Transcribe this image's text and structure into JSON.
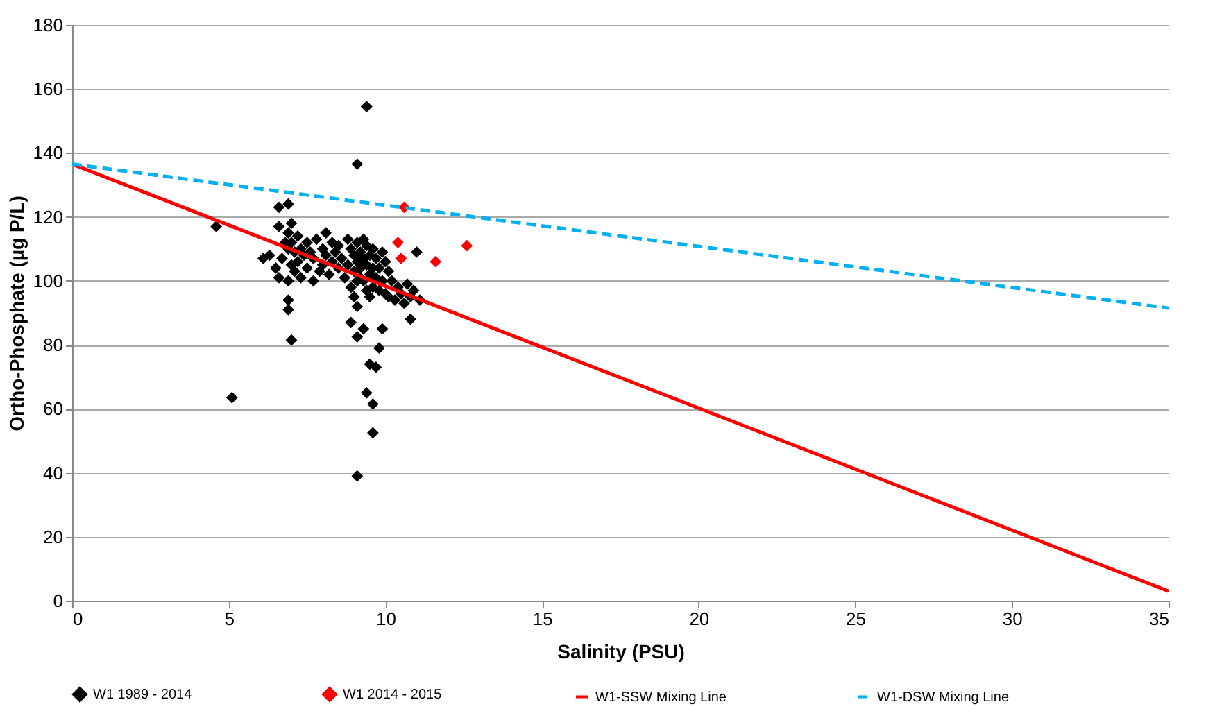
{
  "chart_data": {
    "type": "scatter",
    "xlabel": "Salinity (PSU)",
    "ylabel": "Ortho-Phosphate (µg P/L)",
    "xlim": [
      0,
      35
    ],
    "ylim": [
      0,
      180
    ],
    "xticks": [
      0,
      5,
      10,
      15,
      20,
      25,
      30,
      35
    ],
    "yticks": [
      0,
      20,
      40,
      60,
      80,
      100,
      120,
      140,
      160,
      180
    ],
    "grid": "y",
    "legend": "bottom",
    "series": [
      {
        "name": "W1 1989 - 2014",
        "marker": "diamond",
        "color": "#000000",
        "x": [
          4.6,
          5.1,
          6.1,
          6.3,
          6.5,
          6.6,
          6.6,
          6.7,
          6.8,
          6.9,
          6.9,
          6.9,
          7.0,
          7.0,
          7.0,
          7.1,
          7.1,
          7.2,
          7.2,
          7.3,
          7.3,
          7.4,
          7.5,
          7.5,
          7.6,
          7.7,
          7.7,
          7.8,
          7.9,
          8.0,
          8.0,
          8.1,
          8.1,
          8.2,
          8.3,
          8.3,
          8.4,
          8.5,
          8.5,
          8.6,
          8.7,
          8.8,
          8.8,
          8.9,
          8.9,
          9.0,
          9.0,
          9.0,
          9.1,
          9.1,
          9.1,
          9.1,
          9.2,
          9.2,
          9.3,
          9.3,
          9.3,
          9.4,
          9.4,
          9.4,
          9.5,
          9.5,
          9.5,
          9.6,
          9.6,
          9.6,
          9.7,
          9.7,
          9.8,
          9.8,
          9.9,
          9.9,
          10.0,
          10.0,
          10.1,
          10.1,
          10.2,
          10.3,
          10.4,
          10.5,
          10.6,
          10.7,
          10.8,
          10.9,
          11.0,
          11.1,
          6.6,
          6.9,
          6.9,
          6.9,
          7.0,
          9.4,
          9.1,
          9.1,
          9.6,
          9.6,
          9.4,
          9.5,
          9.7,
          9.8,
          9.9,
          9.3,
          9.1,
          10.8,
          8.9,
          9.2
        ],
        "values": [
          117,
          63.5,
          107,
          108,
          104,
          117,
          101,
          107,
          112,
          100,
          110,
          115,
          105,
          112,
          118,
          103,
          109,
          106,
          114,
          101,
          110,
          108,
          104,
          112,
          109,
          100,
          107,
          113,
          103,
          110,
          105,
          115,
          108,
          102,
          112,
          106,
          109,
          104,
          111,
          107,
          101,
          113,
          105,
          110,
          98,
          108,
          103,
          95,
          112,
          106,
          100,
          92,
          109,
          104,
          113,
          107,
          100,
          111,
          105,
          97,
          108,
          102,
          95,
          110,
          104,
          98,
          107,
          101,
          104,
          97,
          109,
          100,
          106,
          96,
          103,
          95,
          100,
          94,
          98,
          96,
          93,
          99,
          95,
          97,
          109,
          94,
          123,
          91,
          94,
          124,
          81.5,
          154.5,
          136.5,
          39,
          52.5,
          61.5,
          65,
          74,
          73,
          79,
          85,
          85,
          82.5,
          88,
          87,
          101
        ]
      },
      {
        "name": "W1  2014 - 2015",
        "marker": "diamond",
        "color": "#ff0000",
        "x": [
          10.6,
          10.4,
          10.5,
          11.6,
          12.6
        ],
        "values": [
          123,
          112,
          107,
          106,
          111
        ]
      },
      {
        "name": "W1-SSW Mixing Line",
        "type": "line",
        "line_style": "solid",
        "color": "#ff0000",
        "x": [
          0,
          35
        ],
        "values": [
          136.5,
          3
        ]
      },
      {
        "name": "W1-DSW Mixing Line",
        "type": "line",
        "line_style": "dashed",
        "color": "#00b0f0",
        "x": [
          0,
          35
        ],
        "values": [
          136.5,
          91.5
        ]
      }
    ]
  }
}
